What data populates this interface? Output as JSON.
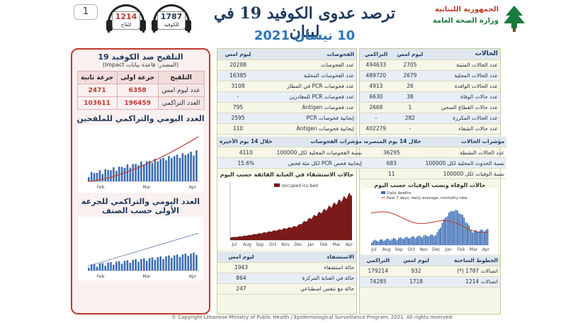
{
  "page_number": "1",
  "hotlines": [
    {
      "number": "1787",
      "label": "للكوفيد"
    },
    {
      "number": "1214",
      "label": "للقاح"
    }
  ],
  "title": "ترصد عدوى الكوفيد 19 في لبنان",
  "date": "10 نيسان 2021",
  "logo": {
    "line1": "الجمهورية اللبنانية",
    "line2": "وزارة الصحة العامة"
  },
  "cases": {
    "header": {
      "label": "الحالات",
      "today": "ليوم امس",
      "cumulative": "التراكمي"
    },
    "rows": [
      {
        "label": "عدد الحالات المثبتة",
        "today": "2705",
        "cumulative": "494633"
      },
      {
        "label": "عدد الحالات المحلية",
        "today": "2679",
        "cumulative": "489720"
      },
      {
        "label": "عدد الحالات الوافدة",
        "today": "26",
        "cumulative": "4913"
      },
      {
        "label": "عدد حالات الوفاة",
        "today": "38",
        "cumulative": "6630"
      },
      {
        "label": "عدد حالات القطاع الصحي",
        "today": "1",
        "cumulative": "2668"
      },
      {
        "label": "عدد الحالات المكررة",
        "today": "282",
        "cumulative": "-"
      },
      {
        "label": "عدد حالات الشفاء",
        "today": "-",
        "cumulative": "402279"
      }
    ],
    "indicators_title": "مؤشرات الحالات",
    "indicators_period": "خلال 14 يوم المنصرمة",
    "indicators": [
      {
        "label": "عدد الحالات النشطة",
        "value": "36295"
      },
      {
        "label": "نسبة الحدوث المحلية لكل 100000",
        "value": "683"
      },
      {
        "label": "نسبة الوفيات لكل 100000",
        "value": "11"
      }
    ]
  },
  "tests": {
    "header": {
      "label": "الفحوصات",
      "today": "ليوم امس"
    },
    "rows": [
      {
        "label": "عدد الفحوصات",
        "value": "20288"
      },
      {
        "label": "عدد الفحوصات المحلية",
        "value": "16385"
      },
      {
        "label": "عدد فحوصات PCR في المطار",
        "value": "3108"
      },
      {
        "label": "عدد فحوصات PCR للمغادرين",
        "value": "-"
      },
      {
        "label": "عدد فحوصات Antigen",
        "value": "795"
      },
      {
        "label": "إيجابية فحوصات PCR",
        "value": "2595"
      },
      {
        "label": "إيجابية فحوصات Antigen",
        "value": "110"
      }
    ],
    "indicators_title": "مؤشرات الفحوصات",
    "indicators_period": "خلال 14 يوم الأخيرة",
    "indicators": [
      {
        "label": "نسبة الفحوصات المحلية لكل 100000",
        "value": "4110"
      },
      {
        "label": "إيجابية فحص PCR لكل مئة فحص",
        "value": "15.6%"
      }
    ]
  },
  "hospital": {
    "header": {
      "label": "الاستشفاء",
      "today": "ليوم امس"
    },
    "rows": [
      {
        "label": "حالة استشفاء",
        "value": "1943"
      },
      {
        "label": "حالة في العناية المركزة",
        "value": "864"
      },
      {
        "label": "حالة مع تنفس اصطناعي",
        "value": "247"
      }
    ]
  },
  "hotline_table": {
    "header": {
      "label": "الخطوط الساخنة",
      "today": "ليوم امس",
      "cumulative": "التراكمي"
    },
    "rows": [
      {
        "label": "اتصالات 1787 (*)",
        "today": "932",
        "cumulative": "179214"
      },
      {
        "label": "اتصالات 1214",
        "today": "1718",
        "cumulative": "74285"
      }
    ]
  },
  "vaccination": {
    "title": "التلقيح ضد الكوفيد 19",
    "source": "(المصدر: قاعدة بيانات Impact)",
    "header": {
      "label": "التلقيح",
      "dose1": "جرعة اولى",
      "dose2": "جرعة ثانية"
    },
    "rows": [
      {
        "label": "عدد ليوم امس",
        "dose1": "6358",
        "dose2": "2471"
      },
      {
        "label": "العدد التراكمي",
        "dose1": "196459",
        "dose2": "103611"
      }
    ],
    "chart1_title": "العدد اليومي والتراكمي للملقحين",
    "chart2_title": "العدد اليومي والتراكمي للجرعة الأولى حسب الصنف"
  },
  "icu_chart": {
    "title": "حالات الاستشفاء في العناية الفائقة حسب اليوم",
    "legend": "occupied icu bed",
    "x_labels": [
      "Jul",
      "Aug",
      "Sep",
      "Oct",
      "Nov",
      "Dec",
      "Jan",
      "Feb",
      "Mar",
      "Apr"
    ]
  },
  "deaths_chart": {
    "title": "حالات الوفاة ونسب الوفيات حسب اليوم",
    "legend1": "Daily deaths",
    "legend2": "Past 7 days, daily average, mortality rate",
    "x_labels": [
      "Jul",
      "Aug",
      "Sep",
      "Oct",
      "Nov",
      "Dec",
      "Jan",
      "Feb",
      "Mar",
      "Apr"
    ]
  },
  "vax_chart": {
    "x_labels": [
      "Feb",
      "Mar",
      "Apr"
    ]
  },
  "footer": "© Copyright Lebanese Ministry of Public Health / Epidemiological Surveillance Program, 2021. All rights reserved",
  "colors": {
    "accent_red": "#c0392b",
    "navy": "#1f3a5f",
    "maroon": "#7b1a1a",
    "blue_bar": "#3a6db5"
  }
}
